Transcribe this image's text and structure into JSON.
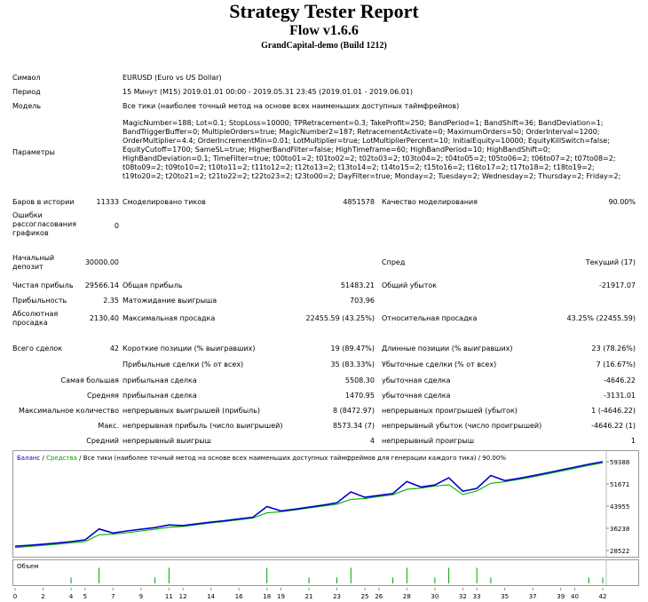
{
  "report": {
    "title": "Strategy Tester Report",
    "subtitle": "Flow v1.6.6",
    "server": "GrandCapital-demo (Build 1212)"
  },
  "info": {
    "symbol_label": "Символ",
    "symbol_value": "EURUSD (Euro vs US Dollar)",
    "period_label": "Период",
    "period_value": "15 Минут (M15) 2019.01.01 00:00 - 2019.05.31 23:45 (2019.01.01 - 2019.06.01)",
    "model_label": "Модель",
    "model_value": "Все тики (наиболее точный метод на основе всех наименьших доступных таймфреймов)",
    "params_label": "Параметры",
    "params_value": "MagicNumber=188; Lot=0.1; StopLoss=10000; TPRetracement=0.3; TakeProfit=250; BandPeriod=1; BandShift=36; BandDeviation=1; BandTriggerBuffer=0; MultipleOrders=true; MagicNumber2=187; RetracementActivate=0; MaximumOrders=50; OrderInterval=1200; OrderMultiplier=4.4; OrderIncrementMin=0.01; LotMultiplier=true; LotMultiplierPercent=10; InitialEquity=10000; EquityKillSwitch=false; EquityCutoff=1700; SameSL=true; HigherBandFilter=false; HighTimeframe=60; HighBandPeriod=10; HighBandShift=0; HighBandDeviation=0.1; TimeFilter=true; t00to01=2; t01to02=2; t02to03=2; t03to04=2; t04to05=2; t05to06=2; t06to07=2; t07to08=2; t08to09=2; t09to10=2; t10to11=2; t11to12=2; t12to13=2; t13to14=2; t14to15=2; t15to16=2; t16to17=2; t17to18=2; t18to19=2; t19to20=2; t20to21=2; t21to22=2; t22to23=2; t23to00=2; DayFilter=true; Monday=2; Tuesday=2; Wednesday=2; Thursday=2; Friday=2;"
  },
  "stats": {
    "bars_label": "Баров в истории",
    "bars_value": "11333",
    "ticks_label": "Смоделировано тиков",
    "ticks_value": "4851578",
    "quality_label": "Качество моделирования",
    "quality_value": "90.00%",
    "errors_label": "Ошибки рассогласования графиков",
    "errors_value": "0",
    "deposit_label": "Начальный депозит",
    "deposit_value": "30000.00",
    "spread_label": "Спред",
    "spread_value": "Текущий (17)",
    "net_label": "Чистая прибыль",
    "net_value": "29566.14",
    "gross_profit_label": "Общая прибыль",
    "gross_profit_value": "51483.21",
    "gross_loss_label": "Общий убыток",
    "gross_loss_value": "-21917.07",
    "pf_label": "Прибыльность",
    "pf_value": "2.35",
    "expect_label": "Матожидание выигрыша",
    "expect_value": "703.96",
    "abs_dd_label": "Абсолютная просадка",
    "abs_dd_value": "2130.40",
    "max_dd_label": "Максимальная просадка",
    "max_dd_value": "22455.59 (43.25%)",
    "rel_dd_label": "Относительная просадка",
    "rel_dd_value": "43.25% (22455.59)",
    "total_label": "Всего сделок",
    "total_value": "42",
    "short_label": "Короткие позиции (% выигравших)",
    "short_value": "19 (89.47%)",
    "long_label": "Длинные позиции (% выигравших)",
    "long_value": "23 (78.26%)",
    "profit_trades_label": "Прибыльные сделки (% от всех)",
    "profit_trades_value": "35 (83.33%)",
    "loss_trades_label": "Убыточные сделки (% от всех)",
    "loss_trades_value": "7 (16.67%)",
    "largest_label": "Самая большая",
    "largest_profit_label": "прибыльная сделка",
    "largest_profit_value": "5508.30",
    "largest_loss_label": "убыточная сделка",
    "largest_loss_value": "-4646.22",
    "avg_label": "Средняя",
    "avg_profit_label": "прибыльная сделка",
    "avg_profit_value": "1470.95",
    "avg_loss_label": "убыточная сделка",
    "avg_loss_value": "-3131.01",
    "maxcount_label": "Максимальное количество",
    "maxcount_wins_label": "непрерывных выигрышей (прибыль)",
    "maxcount_wins_value": "8 (8472.97)",
    "maxcount_losses_label": "непрерывных проигрышей (убыток)",
    "maxcount_losses_value": "1 (-4646.22)",
    "max_label": "Макс.",
    "max_profit_label": "непрерывная прибыль (число выигрышей)",
    "max_profit_value": "8573.34 (7)",
    "max_loss_label": "непрерывный убыток (число проигрышей)",
    "max_loss_value": "-4646.22 (1)",
    "avgcons_label": "Средний",
    "avgcons_wins_label": "непрерывный выигрыш",
    "avgcons_wins_value": "4",
    "avgcons_losses_label": "непрерывный проигрыш",
    "avgcons_losses_value": "1"
  },
  "chart_data": {
    "type": "line",
    "legend": {
      "balance": "Баланс",
      "sep1": " / ",
      "equity": "Средства",
      "sep2": " / ",
      "rest": "Все тики (наиболее точный метод на основе всех наименьших доступных таймфреймов для генерации каждого тика) / 90.00%"
    },
    "colors": {
      "balance": "#0000cc",
      "equity": "#00b000",
      "volume": "#00a000"
    },
    "y_ticks": [
      "59388",
      "51671",
      "43955",
      "36238",
      "28522"
    ],
    "ylim": [
      28522,
      59388
    ],
    "xlim": [
      0,
      42
    ],
    "x_ticks": [
      "0",
      "2",
      "4",
      "5",
      "7",
      "9",
      "11",
      "12",
      "14",
      "16",
      "18",
      "19",
      "21",
      "23",
      "25",
      "26",
      "28",
      "30",
      "32",
      "33",
      "35",
      "37",
      "39",
      "40",
      "42"
    ],
    "volume_label": "Объем",
    "series": [
      {
        "name": "Баланс",
        "x": [
          0,
          1,
          2,
          3,
          4,
          5,
          6,
          7,
          8,
          9,
          10,
          11,
          12,
          13,
          14,
          15,
          16,
          17,
          18,
          19,
          20,
          21,
          22,
          23,
          24,
          25,
          26,
          27,
          28,
          29,
          30,
          31,
          32,
          33,
          34,
          35,
          36,
          37,
          38,
          39,
          40,
          41,
          42
        ],
        "values": [
          30000,
          30300,
          30700,
          31100,
          31600,
          32200,
          36000,
          34600,
          35300,
          35900,
          36500,
          37400,
          37200,
          37800,
          38400,
          38900,
          39500,
          40100,
          43800,
          42300,
          42900,
          43600,
          44300,
          45100,
          48900,
          47000,
          47700,
          48300,
          52500,
          50600,
          51300,
          53800,
          49100,
          50100,
          54600,
          52800,
          53600,
          54500,
          55500,
          56500,
          57500,
          58500,
          59388
        ]
      },
      {
        "name": "Средства",
        "x": [
          0,
          1,
          2,
          3,
          4,
          5,
          6,
          7,
          8,
          9,
          10,
          11,
          12,
          13,
          14,
          15,
          16,
          17,
          18,
          19,
          20,
          21,
          22,
          23,
          24,
          25,
          26,
          27,
          28,
          29,
          30,
          31,
          32,
          33,
          34,
          35,
          36,
          37,
          38,
          39,
          40,
          41,
          42
        ],
        "values": [
          29500,
          29900,
          30300,
          30700,
          31200,
          31600,
          34000,
          34200,
          34700,
          35300,
          35900,
          36600,
          36900,
          37500,
          38100,
          38600,
          39200,
          39800,
          41600,
          42000,
          42600,
          43300,
          44000,
          44600,
          46300,
          46600,
          47300,
          47900,
          49800,
          50200,
          50900,
          51400,
          48000,
          49200,
          51900,
          52400,
          53200,
          54100,
          55100,
          56100,
          57100,
          58100,
          59000
        ]
      }
    ],
    "volume": [
      0,
      0,
      0,
      0,
      0.3,
      0,
      0.8,
      0,
      0,
      0,
      0.3,
      0.8,
      0,
      0,
      0,
      0,
      0,
      0,
      0.8,
      0,
      0,
      0.3,
      0,
      0.3,
      0.8,
      0,
      0,
      0.3,
      0.8,
      0,
      0.3,
      0.8,
      0,
      0.8,
      0.3,
      0,
      0,
      0,
      0,
      0,
      0,
      0.3,
      0.3
    ]
  }
}
